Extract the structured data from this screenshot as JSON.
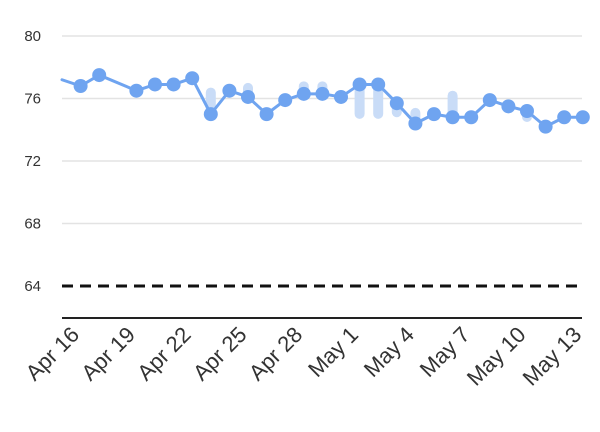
{
  "chart_data": {
    "type": "line",
    "ylim": [
      62,
      81
    ],
    "y_ticks": [
      80,
      76,
      72,
      68,
      64
    ],
    "y_tick_labels": [
      "80",
      "76",
      "72",
      "68",
      "64"
    ],
    "grid": true,
    "x_tick_labels": [
      "Apr 16",
      "Apr 19",
      "Apr 22",
      "Apr 25",
      "Apr 28",
      "May 1",
      "May 4",
      "May 7",
      "May 10",
      "May 13"
    ],
    "categories": [
      "Apr 15",
      "Apr 16",
      "Apr 17",
      "Apr 18",
      "Apr 19",
      "Apr 20",
      "Apr 21",
      "Apr 22",
      "Apr 23",
      "Apr 24",
      "Apr 25",
      "Apr 26",
      "Apr 27",
      "Apr 28",
      "Apr 29",
      "Apr 30",
      "May 1",
      "May 2",
      "May 3",
      "May 4",
      "May 5",
      "May 6",
      "May 7",
      "May 8",
      "May 9",
      "May 10",
      "May 11",
      "May 12",
      "May 13"
    ],
    "series": [
      {
        "values": [
          77.2,
          76.8,
          77.5,
          null,
          76.5,
          76.9,
          76.9,
          77.3,
          75.0,
          76.5,
          76.1,
          75.0,
          75.9,
          76.3,
          76.3,
          76.1,
          76.9,
          76.9,
          75.7,
          74.4,
          75.0,
          74.8,
          74.8,
          75.9,
          75.5,
          75.2,
          74.2,
          74.8,
          74.8
        ],
        "color": "#6fa4f0"
      },
      {
        "type": "range_bars",
        "ranges": [
          null,
          null,
          null,
          null,
          null,
          null,
          null,
          null,
          [
            75.0,
            76.7
          ],
          [
            76.2,
            76.9
          ],
          [
            75.8,
            77.0
          ],
          null,
          null,
          [
            76.0,
            77.1
          ],
          [
            75.9,
            77.1
          ],
          [
            75.7,
            76.5
          ],
          [
            74.7,
            77.0
          ],
          [
            74.7,
            77.0
          ],
          [
            74.8,
            75.9
          ],
          [
            74.5,
            75.4
          ],
          [
            74.8,
            75.3
          ],
          [
            74.6,
            76.5
          ],
          [
            74.6,
            75.2
          ],
          [
            75.6,
            76.0
          ],
          [
            75.1,
            75.7
          ],
          [
            74.5,
            75.5
          ],
          [
            74.0,
            74.6
          ],
          null,
          null
        ],
        "color": "#c9dcf7"
      }
    ],
    "reference_line": {
      "value": 64,
      "style": "dashed",
      "color": "#111111"
    }
  }
}
